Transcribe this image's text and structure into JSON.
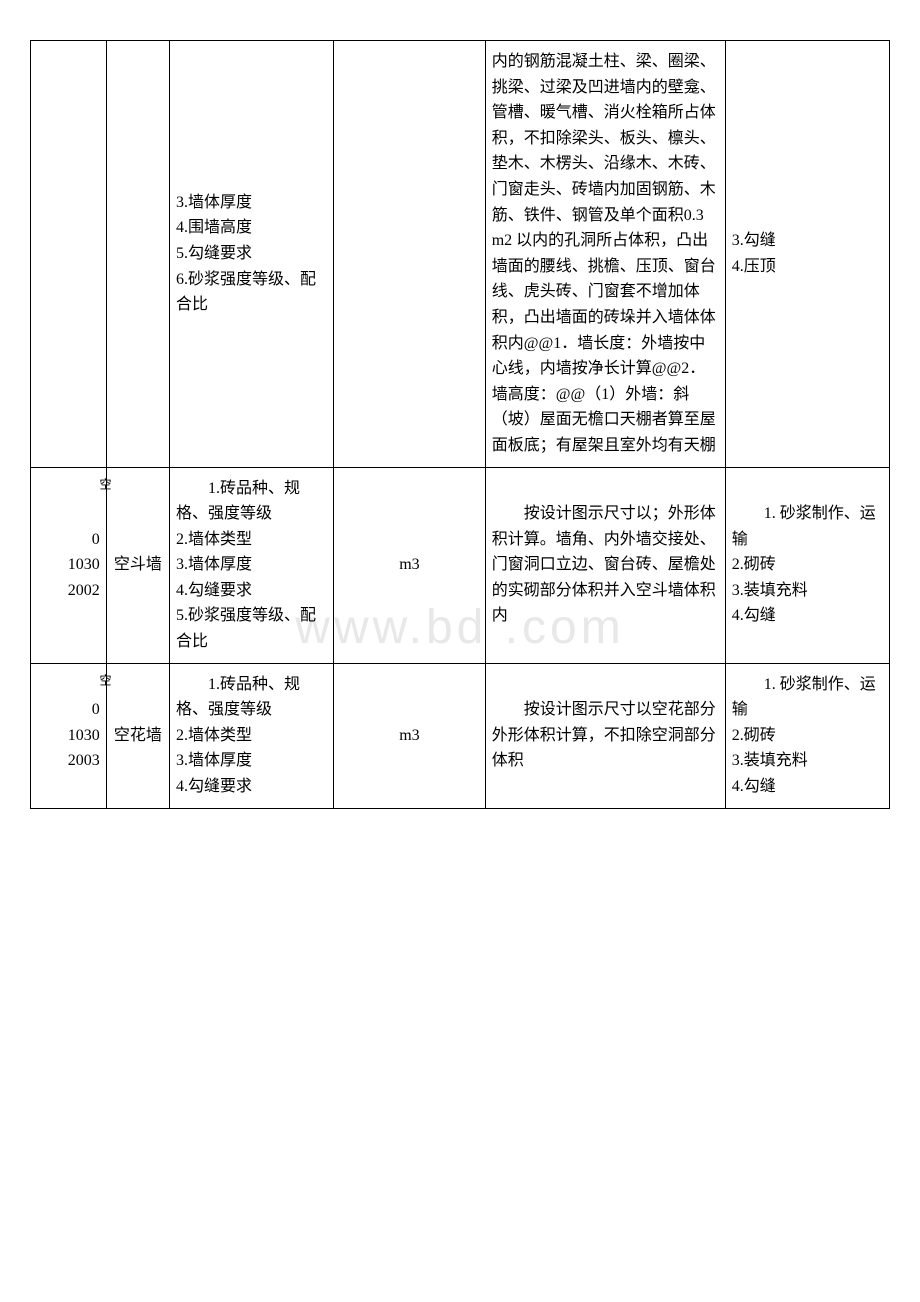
{
  "watermark": "www.bd    .com",
  "rows": [
    {
      "code": "",
      "name": "",
      "feature": "3.墙体厚度\n4.围墙高度\n5.勾缝要求\n6.砂浆强度等级、配合比",
      "unit": "",
      "rule": "内的钢筋混凝土柱、梁、圈梁、挑梁、过梁及凹进墙内的壁龛、管槽、暖气槽、消火栓箱所占体积，不扣除梁头、板头、檩头、垫木、木楞头、沿缘木、木砖、门窗走头、砖墙内加固钢筋、木筋、铁件、钢管及单个面积0.3 m2 以内的孔洞所占体积，凸出墙面的腰线、挑檐、压顶、窗台线、虎头砖、门窗套不增加体积，凸出墙面的砖垛并入墙体体积内@@1．墙长度：外墙按中心线，内墙按净长计算@@2．墙高度：@@（1）外墙：斜（坡）屋面无檐口天棚者算至屋面板底；有屋架且室外均有天棚",
      "content": "3.勾缝\n4.压顶"
    },
    {
      "code": "010302002",
      "name": "空斗墙",
      "marker": "空",
      "feature": "　　1.砖品种、规格、强度等级\n2.墙体类型\n3.墙体厚度\n4.勾缝要求\n5.砂浆强度等级、配合比",
      "unit": "m3",
      "rule": "　　按设计图示尺寸以；外形体积计算。墙角、内外墙交接处、门窗洞口立边、窗台砖、屋檐处的实砌部分体积并入空斗墙体积内",
      "content": "　　1. 砂浆制作、运输\n2.砌砖\n3.装填充料\n4.勾缝"
    },
    {
      "code": "010302003",
      "name": "空花墙",
      "marker": "空",
      "feature": "　　1.砖品种、规格、强度等级\n2.墙体类型\n3.墙体厚度\n4.勾缝要求",
      "unit": "m3",
      "rule": "　　按设计图示尺寸以空花部分外形体积计算，不扣除空洞部分体积",
      "content": "　　1. 砂浆制作、运输\n2.砌砖\n3.装填充料\n4.勾缝"
    }
  ]
}
